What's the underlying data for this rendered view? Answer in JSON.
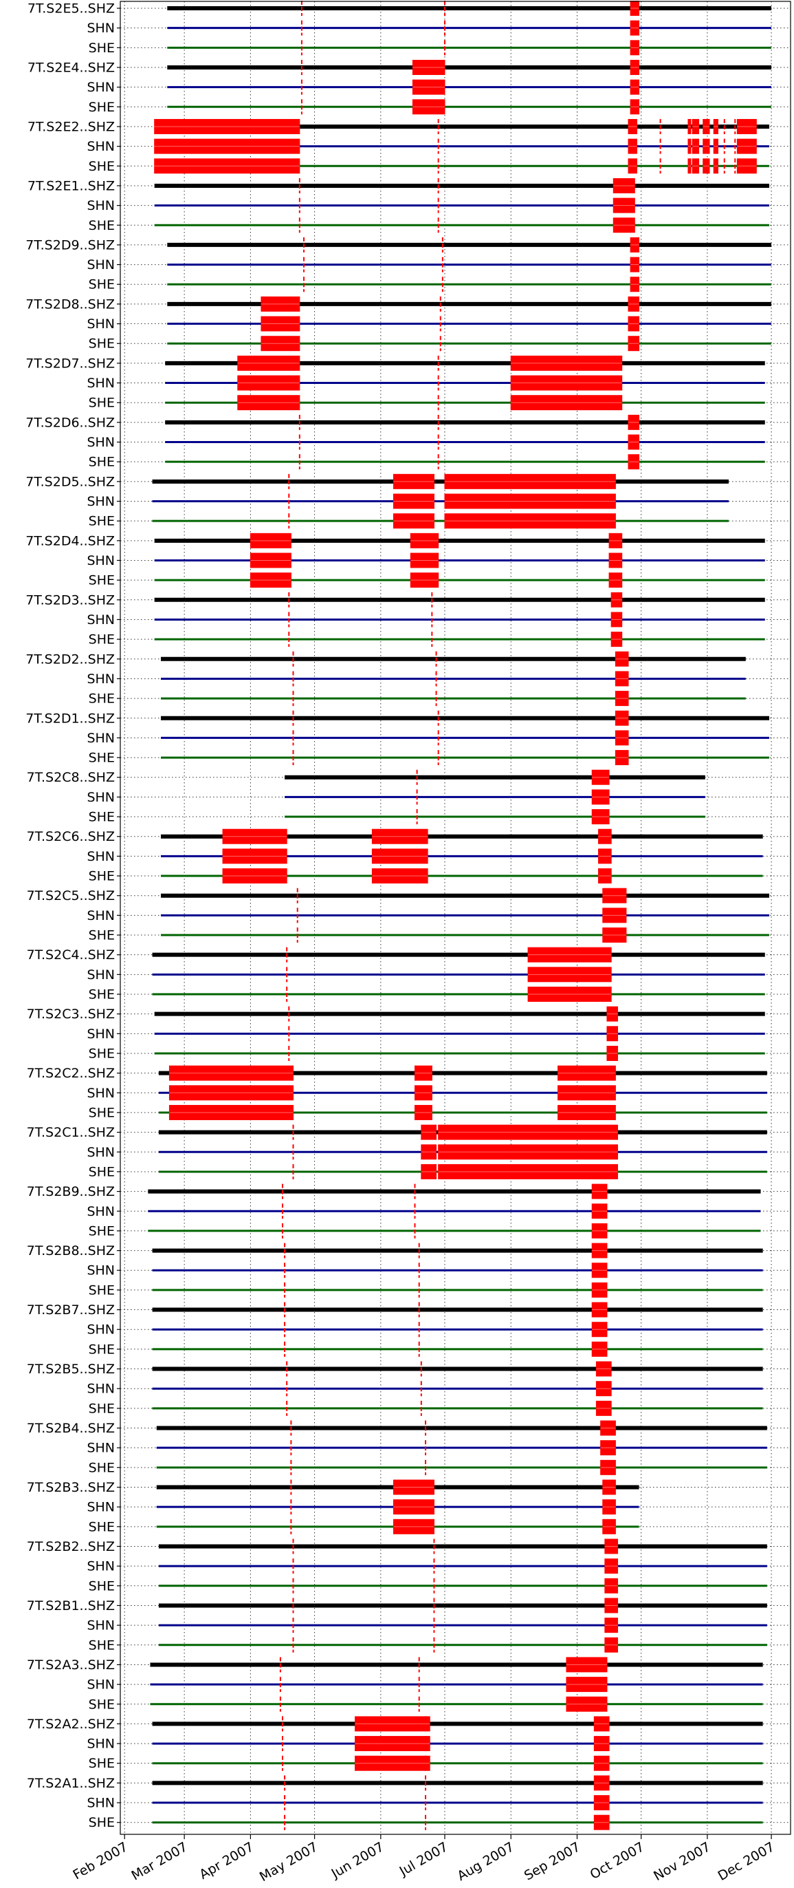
{
  "chart_data": {
    "type": "timeline",
    "title": "",
    "xlabel": "",
    "ylabel": "",
    "grid": true,
    "x_axis": {
      "start": "2007-01-30",
      "end": "2007-12-10",
      "ticks": [
        {
          "date": "2007-02-01",
          "label": "Feb 2007"
        },
        {
          "date": "2007-03-01",
          "label": "Mar 2007"
        },
        {
          "date": "2007-04-01",
          "label": "Apr 2007"
        },
        {
          "date": "2007-05-01",
          "label": "May 2007"
        },
        {
          "date": "2007-06-01",
          "label": "Jun 2007"
        },
        {
          "date": "2007-07-01",
          "label": "Jul 2007"
        },
        {
          "date": "2007-08-01",
          "label": "Aug 2007"
        },
        {
          "date": "2007-09-01",
          "label": "Sep 2007"
        },
        {
          "date": "2007-10-01",
          "label": "Oct 2007"
        },
        {
          "date": "2007-11-01",
          "label": "Nov 2007"
        },
        {
          "date": "2007-12-01",
          "label": "Dec 2007"
        }
      ]
    },
    "channel_colors": {
      "SHZ": "#000000",
      "SHN": "#00008b",
      "SHE": "#006400"
    },
    "gap_color": "#ff0000",
    "stations": [
      {
        "name": "7T.S2E5.",
        "start": "2007-02-21",
        "end": "2007-12-01",
        "gaps": [
          {
            "start": "2007-09-26",
            "end": "2007-09-30"
          }
        ],
        "marks": [
          "2007-04-25",
          "2007-07-01"
        ]
      },
      {
        "name": "7T.S2E4.",
        "start": "2007-02-21",
        "end": "2007-12-01",
        "gaps": [
          {
            "start": "2007-06-16",
            "end": "2007-07-01"
          },
          {
            "start": "2007-09-26",
            "end": "2007-09-30"
          }
        ],
        "marks": [
          "2007-04-25"
        ]
      },
      {
        "name": "7T.S2E2.",
        "start": "2007-02-15",
        "end": "2007-11-30",
        "gaps": [
          {
            "start": "2007-02-15",
            "end": "2007-04-24"
          },
          {
            "start": "2007-09-25",
            "end": "2007-09-29"
          },
          {
            "start": "2007-10-23",
            "end": "2007-10-24"
          },
          {
            "start": "2007-10-25",
            "end": "2007-10-28"
          },
          {
            "start": "2007-10-30",
            "end": "2007-11-02"
          },
          {
            "start": "2007-11-04",
            "end": "2007-11-06"
          },
          {
            "start": "2007-11-15",
            "end": "2007-11-24"
          }
        ],
        "marks": [
          "2007-06-28",
          "2007-10-10",
          "2007-11-09",
          "2007-11-14"
        ]
      },
      {
        "name": "7T.S2E1.",
        "start": "2007-02-15",
        "end": "2007-11-30",
        "gaps": [
          {
            "start": "2007-09-18",
            "end": "2007-09-28"
          }
        ],
        "marks": [
          "2007-04-24",
          "2007-06-28"
        ]
      },
      {
        "name": "7T.S2D9.",
        "start": "2007-02-21",
        "end": "2007-12-01",
        "gaps": [
          {
            "start": "2007-09-26",
            "end": "2007-09-30"
          }
        ],
        "marks": [
          "2007-04-26",
          "2007-06-30"
        ]
      },
      {
        "name": "7T.S2D8.",
        "start": "2007-02-21",
        "end": "2007-12-01",
        "gaps": [
          {
            "start": "2007-04-06",
            "end": "2007-04-24"
          },
          {
            "start": "2007-09-25",
            "end": "2007-09-30"
          }
        ],
        "marks": [
          "2007-06-29"
        ]
      },
      {
        "name": "7T.S2D7.",
        "start": "2007-02-20",
        "end": "2007-11-28",
        "gaps": [
          {
            "start": "2007-03-26",
            "end": "2007-04-24"
          },
          {
            "start": "2007-08-01",
            "end": "2007-09-22"
          }
        ],
        "marks": [
          "2007-06-28"
        ]
      },
      {
        "name": "7T.S2D6.",
        "start": "2007-02-20",
        "end": "2007-11-28",
        "gaps": [
          {
            "start": "2007-09-25",
            "end": "2007-09-30"
          }
        ],
        "marks": [
          "2007-04-24",
          "2007-06-28"
        ]
      },
      {
        "name": "7T.S2D5.",
        "start": "2007-02-14",
        "end": "2007-11-11",
        "gaps": [
          {
            "start": "2007-06-07",
            "end": "2007-06-26"
          },
          {
            "start": "2007-07-01",
            "end": "2007-09-19"
          }
        ],
        "marks": [
          "2007-04-19"
        ]
      },
      {
        "name": "7T.S2D4.",
        "start": "2007-02-15",
        "end": "2007-11-28",
        "gaps": [
          {
            "start": "2007-04-01",
            "end": "2007-04-20"
          },
          {
            "start": "2007-06-15",
            "end": "2007-06-28"
          },
          {
            "start": "2007-09-16",
            "end": "2007-09-22"
          }
        ],
        "marks": []
      },
      {
        "name": "7T.S2D3.",
        "start": "2007-02-15",
        "end": "2007-11-28",
        "gaps": [
          {
            "start": "2007-09-17",
            "end": "2007-09-22"
          }
        ],
        "marks": [
          "2007-04-19",
          "2007-06-25"
        ]
      },
      {
        "name": "7T.S2D2.",
        "start": "2007-02-18",
        "end": "2007-11-19",
        "gaps": [
          {
            "start": "2007-09-19",
            "end": "2007-09-25"
          }
        ],
        "marks": [
          "2007-04-21",
          "2007-06-27"
        ]
      },
      {
        "name": "7T.S2D1.",
        "start": "2007-02-18",
        "end": "2007-11-30",
        "gaps": [
          {
            "start": "2007-09-19",
            "end": "2007-09-25"
          }
        ],
        "marks": [
          "2007-04-21",
          "2007-06-28"
        ]
      },
      {
        "name": "7T.S2C8.",
        "start": "2007-04-17",
        "end": "2007-10-31",
        "gaps": [
          {
            "start": "2007-09-08",
            "end": "2007-09-16"
          }
        ],
        "marks": [
          "2007-06-18"
        ]
      },
      {
        "name": "7T.S2C6.",
        "start": "2007-02-18",
        "end": "2007-11-27",
        "gaps": [
          {
            "start": "2007-03-19",
            "end": "2007-04-18"
          },
          {
            "start": "2007-05-28",
            "end": "2007-06-23"
          },
          {
            "start": "2007-09-11",
            "end": "2007-09-17"
          }
        ],
        "marks": []
      },
      {
        "name": "7T.S2C5.",
        "start": "2007-02-18",
        "end": "2007-11-30",
        "gaps": [
          {
            "start": "2007-09-13",
            "end": "2007-09-24"
          }
        ],
        "marks": [
          "2007-04-23"
        ]
      },
      {
        "name": "7T.S2C4.",
        "start": "2007-02-14",
        "end": "2007-11-28",
        "gaps": [
          {
            "start": "2007-08-09",
            "end": "2007-09-17"
          }
        ],
        "marks": [
          "2007-04-18"
        ]
      },
      {
        "name": "7T.S2C3.",
        "start": "2007-02-15",
        "end": "2007-11-28",
        "gaps": [
          {
            "start": "2007-09-15",
            "end": "2007-09-20"
          }
        ],
        "marks": [
          "2007-04-19"
        ]
      },
      {
        "name": "7T.S2C2.",
        "start": "2007-02-17",
        "end": "2007-11-29",
        "gaps": [
          {
            "start": "2007-02-22",
            "end": "2007-04-21"
          },
          {
            "start": "2007-06-17",
            "end": "2007-06-25"
          },
          {
            "start": "2007-08-23",
            "end": "2007-09-19"
          }
        ],
        "marks": []
      },
      {
        "name": "7T.S2C1.",
        "start": "2007-02-17",
        "end": "2007-11-29",
        "gaps": [
          {
            "start": "2007-06-20",
            "end": "2007-06-27"
          },
          {
            "start": "2007-06-28",
            "end": "2007-09-20"
          }
        ],
        "marks": [
          "2007-04-21"
        ]
      },
      {
        "name": "7T.S2B9.",
        "start": "2007-02-12",
        "end": "2007-11-26",
        "gaps": [
          {
            "start": "2007-09-08",
            "end": "2007-09-15"
          }
        ],
        "marks": [
          "2007-04-16",
          "2007-06-17"
        ]
      },
      {
        "name": "7T.S2B8.",
        "start": "2007-02-14",
        "end": "2007-11-27",
        "gaps": [
          {
            "start": "2007-09-08",
            "end": "2007-09-15"
          }
        ],
        "marks": [
          "2007-04-17",
          "2007-06-19"
        ]
      },
      {
        "name": "7T.S2B7.",
        "start": "2007-02-14",
        "end": "2007-11-27",
        "gaps": [
          {
            "start": "2007-09-08",
            "end": "2007-09-15"
          }
        ],
        "marks": [
          "2007-04-17",
          "2007-06-19"
        ]
      },
      {
        "name": "7T.S2B5.",
        "start": "2007-02-14",
        "end": "2007-11-27",
        "gaps": [
          {
            "start": "2007-09-10",
            "end": "2007-09-17"
          }
        ],
        "marks": [
          "2007-04-18",
          "2007-06-20"
        ]
      },
      {
        "name": "7T.S2B4.",
        "start": "2007-02-16",
        "end": "2007-11-29",
        "gaps": [
          {
            "start": "2007-09-12",
            "end": "2007-09-19"
          }
        ],
        "marks": [
          "2007-04-20",
          "2007-06-22"
        ]
      },
      {
        "name": "7T.S2B3.",
        "start": "2007-02-16",
        "end": "2007-09-30",
        "gaps": [
          {
            "start": "2007-06-07",
            "end": "2007-06-26"
          },
          {
            "start": "2007-09-13",
            "end": "2007-09-19"
          }
        ],
        "marks": [
          "2007-04-20"
        ]
      },
      {
        "name": "7T.S2B2.",
        "start": "2007-02-17",
        "end": "2007-11-29",
        "gaps": [
          {
            "start": "2007-09-14",
            "end": "2007-09-20"
          }
        ],
        "marks": [
          "2007-04-21",
          "2007-06-26"
        ]
      },
      {
        "name": "7T.S2B1.",
        "start": "2007-02-17",
        "end": "2007-11-29",
        "gaps": [
          {
            "start": "2007-09-14",
            "end": "2007-09-20"
          }
        ],
        "marks": [
          "2007-04-21",
          "2007-06-26"
        ]
      },
      {
        "name": "7T.S2A3.",
        "start": "2007-02-13",
        "end": "2007-11-27",
        "gaps": [
          {
            "start": "2007-08-27",
            "end": "2007-09-15"
          }
        ],
        "marks": [
          "2007-04-15",
          "2007-06-19"
        ]
      },
      {
        "name": "7T.S2A2.",
        "start": "2007-02-14",
        "end": "2007-11-27",
        "gaps": [
          {
            "start": "2007-05-20",
            "end": "2007-06-24"
          },
          {
            "start": "2007-09-09",
            "end": "2007-09-16"
          }
        ],
        "marks": [
          "2007-04-16",
          "2007-06-22"
        ]
      },
      {
        "name": "7T.S2A1.",
        "start": "2007-02-14",
        "end": "2007-11-27",
        "gaps": [
          {
            "start": "2007-09-09",
            "end": "2007-09-16"
          }
        ],
        "marks": [
          "2007-04-17",
          "2007-06-22"
        ]
      }
    ]
  }
}
